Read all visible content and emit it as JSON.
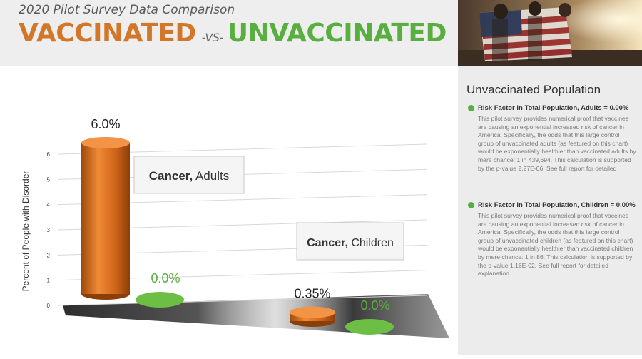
{
  "header": {
    "subtitle": "2020 Pilot Survey Data Comparison",
    "title_left": "VACCINATED",
    "title_vs": "-VS-",
    "title_right": "UNVACCINATED"
  },
  "colors": {
    "vaccinated": "#d2762a",
    "unvaccinated": "#58ae3f"
  },
  "sidebar": {
    "title": "Unvaccinated Population",
    "items": [
      {
        "heading": "Risk Factor in Total Population, Adults = 0.00%",
        "body": "This pilot survey provides numerical proof that vaccines are causing an exponential increased risk of cancer in America. Specifically, the odds that this large control group of unvaccinated adults (as featured on this chart) would be exponentially healthier than vaccinated adults by mere chance: 1 in 439,694. This calculation is supported by the p-value 2.27E-06. See full report for detailed"
      },
      {
        "heading": "Risk Factor in Total Population, Children = 0.00%",
        "body": "This pilot survey provides numerical proof that vaccines are causing an exponential increased risk of cancer in America. Specifically, the odds that this large control group of unvaccinated children (as featured on this chart) would be exponentially healthier than vaccinated children by mere chance: 1 in 86. This calculation is supported by the p-value 1.16E-02. See full report for detailed explanation."
      }
    ]
  },
  "chart_data": {
    "type": "bar",
    "ylabel": "Percent of People with Disorder",
    "ylim": [
      0,
      6
    ],
    "yticks": [
      0,
      1,
      2,
      3,
      4,
      5,
      6
    ],
    "categories": [
      {
        "bold": "Cancer,",
        "normal": " Adults"
      },
      {
        "bold": "Cancer,",
        "normal": " Children"
      }
    ],
    "values": {
      "vaccinated": [
        6.0,
        0.35
      ],
      "unvaccinated": [
        0.0,
        0.0
      ]
    },
    "labels": {
      "vaccinated": [
        "6.0%",
        "0.35%"
      ],
      "unvaccinated": [
        "0.0%",
        "0.0%"
      ]
    }
  }
}
